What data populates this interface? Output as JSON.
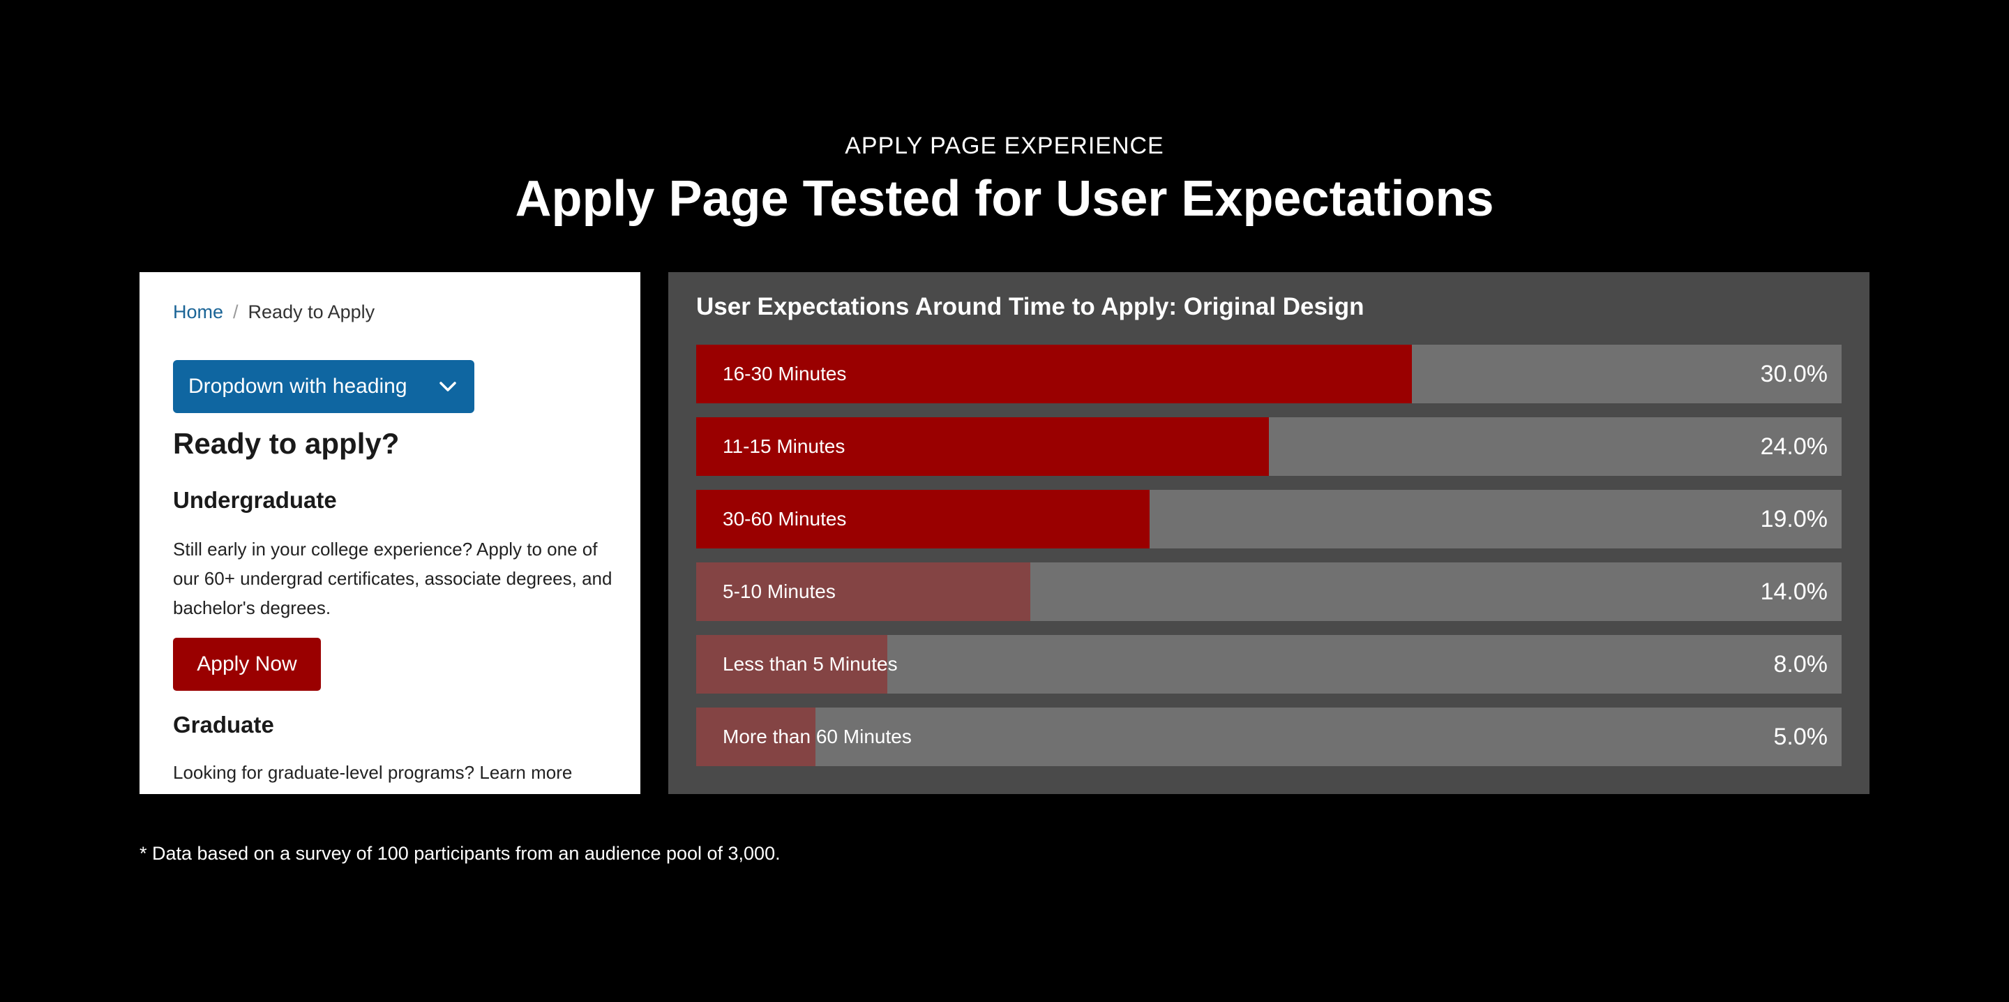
{
  "header": {
    "eyebrow": "APPLY PAGE EXPERIENCE",
    "title": "Apply Page Tested for User Expectations"
  },
  "mock_page": {
    "breadcrumb": {
      "home": "Home",
      "separator": "/",
      "current": "Ready to Apply"
    },
    "dropdown_label": "Dropdown with heading",
    "page_title": "Ready to apply?",
    "undergraduate": {
      "heading": "Undergraduate",
      "body": "Still early in your college experience? Apply to one of our 60+ undergrad certificates, associate degrees, and bachelor's degrees.",
      "button": "Apply Now"
    },
    "graduate": {
      "heading": "Graduate",
      "body": "Looking for graduate-level programs? Learn more"
    },
    "colors": {
      "link": "#1a6496",
      "dropdown_bg": "#0f66a1",
      "button_bg": "#9a0000"
    }
  },
  "chart_data": {
    "type": "bar",
    "orientation": "horizontal",
    "title": "User Expectations Around Time to Apply: Original Design",
    "categories": [
      "16-30 Minutes",
      "11-15 Minutes",
      "30-60 Minutes",
      "5-10 Minutes",
      "Less than 5 Minutes",
      "More than 60 Minutes"
    ],
    "values": [
      30.0,
      24.0,
      19.0,
      14.0,
      8.0,
      5.0
    ],
    "value_labels": [
      "30.0%",
      "24.0%",
      "19.0%",
      "14.0%",
      "8.0%",
      "5.0%"
    ],
    "highlight": [
      true,
      true,
      true,
      false,
      false,
      false
    ],
    "colors": {
      "highlight": "#9a0000",
      "muted": "#844444",
      "track": "#717171",
      "panel": "#4a4a4a"
    },
    "xlim": [
      0,
      48
    ]
  },
  "footnote": "* Data based on a survey of 100 participants from an audience pool of 3,000."
}
